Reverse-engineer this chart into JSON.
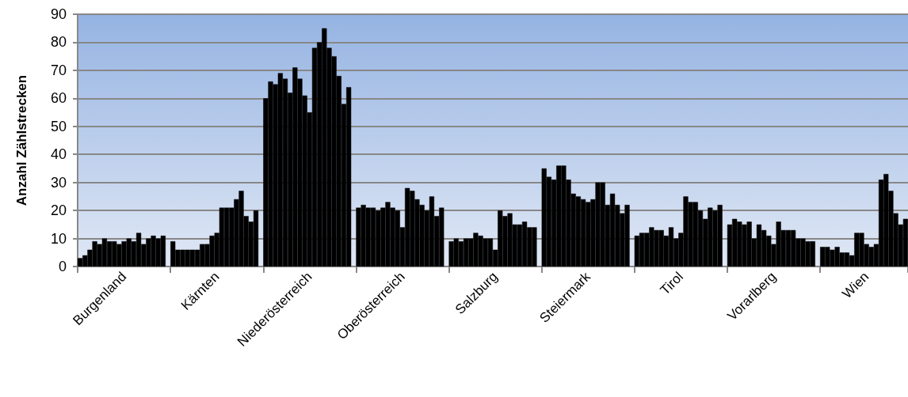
{
  "chart_data": {
    "type": "bar",
    "ylabel": "Anzahl Zählstrecken",
    "categories": [
      null,
      null,
      null,
      null,
      null,
      null,
      null,
      null,
      null,
      "Burgenland",
      null,
      null,
      null,
      null,
      null,
      null,
      null,
      null,
      null,
      null,
      null,
      null,
      null,
      null,
      null,
      null,
      null,
      null,
      "Kärnten",
      null,
      null,
      null,
      null,
      null,
      null,
      null,
      null,
      null,
      null,
      null,
      null,
      null,
      null,
      null,
      null,
      null,
      null,
      "Niederösterreich",
      null,
      null,
      null,
      null,
      null,
      null,
      null,
      null,
      null,
      null,
      null,
      null,
      null,
      null,
      null,
      null,
      null,
      null,
      "Oberösterreich",
      null,
      null,
      null,
      null,
      null,
      null,
      null,
      null,
      null,
      null,
      null,
      null,
      null,
      null,
      null,
      null,
      null,
      null,
      "Salzburg",
      null,
      null,
      null,
      null,
      null,
      null,
      null,
      null,
      null,
      null,
      null,
      null,
      null,
      null,
      null,
      null,
      null,
      null,
      "Steiermark",
      null,
      null,
      null,
      null,
      null,
      null,
      null,
      null,
      null,
      null,
      null,
      null,
      null,
      null,
      null,
      null,
      null,
      null,
      "Tirol",
      null,
      null,
      null,
      null,
      null,
      null,
      null,
      null,
      null,
      null,
      null,
      null,
      null,
      null,
      null,
      null,
      null,
      null,
      "Vorarlberg",
      null,
      null,
      null,
      null,
      null,
      null,
      null,
      null,
      null,
      null,
      null,
      null,
      null,
      null,
      null,
      null,
      null,
      null,
      "Wien",
      null,
      null,
      null,
      null,
      null,
      null,
      null,
      null
    ],
    "values": [
      3,
      4,
      6,
      9,
      8,
      10,
      9,
      9,
      8,
      9,
      10,
      9,
      12,
      8,
      10,
      11,
      10,
      11,
      null,
      9,
      6,
      6,
      6,
      6,
      6,
      8,
      8,
      11,
      12,
      21,
      21,
      21,
      24,
      27,
      18,
      16,
      20,
      null,
      60,
      66,
      65,
      69,
      67,
      62,
      71,
      67,
      61,
      55,
      78,
      80,
      85,
      78,
      75,
      68,
      58,
      64,
      null,
      21,
      22,
      21,
      21,
      20,
      21,
      23,
      21,
      20,
      14,
      28,
      27,
      24,
      22,
      20,
      25,
      18,
      21,
      null,
      9,
      10,
      9,
      10,
      10,
      12,
      11,
      10,
      10,
      6,
      20,
      18,
      19,
      15,
      15,
      16,
      14,
      14,
      null,
      35,
      32,
      31,
      36,
      36,
      31,
      26,
      25,
      24,
      23,
      24,
      30,
      30,
      22,
      26,
      22,
      19,
      22,
      null,
      11,
      12,
      12,
      14,
      13,
      13,
      11,
      14,
      10,
      12,
      25,
      23,
      23,
      20,
      17,
      21,
      20,
      22,
      null,
      15,
      17,
      16,
      15,
      16,
      10,
      15,
      13,
      11,
      8,
      16,
      13,
      13,
      13,
      10,
      10,
      9,
      9,
      null,
      7,
      7,
      6,
      7,
      5,
      5,
      4,
      12,
      12,
      8,
      7,
      8,
      31,
      33,
      27,
      19,
      15,
      17
    ],
    "color": "#000000",
    "ylim": [
      0,
      90
    ],
    "yticks": [
      0,
      10,
      20,
      30,
      40,
      50,
      60,
      70,
      80,
      90
    ],
    "grid": "y"
  }
}
